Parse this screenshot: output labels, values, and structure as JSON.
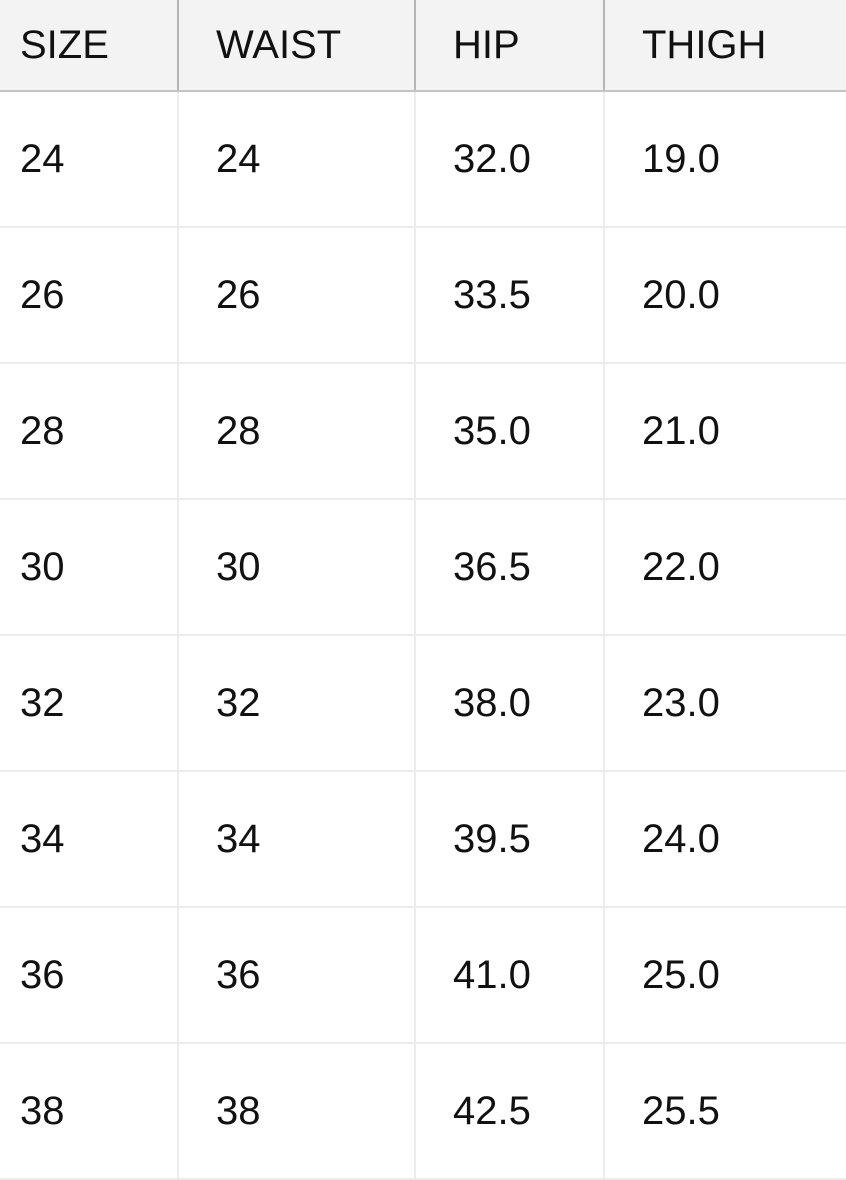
{
  "table": {
    "headers": [
      "SIZE",
      "WAIST",
      "HIP",
      "THIGH"
    ],
    "rows": [
      [
        "24",
        "24",
        "32.0",
        "19.0"
      ],
      [
        "26",
        "26",
        "33.5",
        "20.0"
      ],
      [
        "28",
        "28",
        "35.0",
        "21.0"
      ],
      [
        "30",
        "30",
        "36.5",
        "22.0"
      ],
      [
        "32",
        "32",
        "38.0",
        "23.0"
      ],
      [
        "34",
        "34",
        "39.5",
        "24.0"
      ],
      [
        "36",
        "36",
        "41.0",
        "25.0"
      ],
      [
        "38",
        "38",
        "42.5",
        "25.5"
      ]
    ]
  }
}
